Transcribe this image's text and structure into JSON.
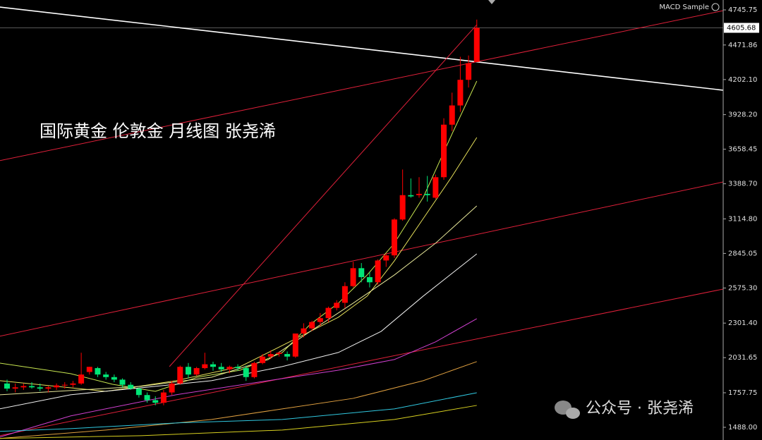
{
  "chart_data": {
    "type": "candlestick",
    "title": "国际黄金 伦敦金 月线图 张尧浠",
    "indicator": "MACD Sample",
    "watermark": "公众号 · 张尧浠",
    "up_color": "#ff0000",
    "down_color": "#00e676",
    "ylim": [
      1389,
      4823
    ],
    "yticks": [
      4745.75,
      {
        "value": 4471.86,
        "label": "4471.86"
      },
      {
        "value": 4202.1,
        "label": "4202.10"
      },
      {
        "value": 3928.2,
        "label": "3928.20"
      },
      3658.45,
      {
        "value": 3388.7,
        "label": "3388.70"
      },
      {
        "value": 3114.8,
        "label": "3114.80"
      },
      2845.05,
      {
        "value": 2575.3,
        "label": "2575.30"
      },
      {
        "value": 2301.4,
        "label": "2301.40"
      },
      2031.65,
      1757.75,
      {
        "value": 1488,
        "label": "1488.00"
      }
    ],
    "current_price": 4605.68,
    "ohlc": [
      [
        1830,
        1860,
        1770,
        1790
      ],
      [
        1790,
        1830,
        1760,
        1800
      ],
      [
        1800,
        1830,
        1780,
        1810
      ],
      [
        1810,
        1840,
        1790,
        1800
      ],
      [
        1800,
        1830,
        1770,
        1790
      ],
      [
        1790,
        1810,
        1760,
        1800
      ],
      [
        1800,
        1830,
        1780,
        1815
      ],
      [
        1815,
        1840,
        1790,
        1820
      ],
      [
        1820,
        1850,
        1800,
        1830
      ],
      [
        1830,
        2070,
        1820,
        1900
      ],
      [
        1920,
        1960,
        1900,
        1960
      ],
      [
        1950,
        1960,
        1880,
        1900
      ],
      [
        1900,
        1920,
        1860,
        1880
      ],
      [
        1880,
        1900,
        1840,
        1860
      ],
      [
        1860,
        1870,
        1800,
        1820
      ],
      [
        1820,
        1840,
        1780,
        1790
      ],
      [
        1790,
        1800,
        1720,
        1740
      ],
      [
        1740,
        1760,
        1680,
        1700
      ],
      [
        1700,
        1730,
        1660,
        1680
      ],
      [
        1680,
        1780,
        1660,
        1760
      ],
      [
        1760,
        1850,
        1740,
        1830
      ],
      [
        1830,
        1970,
        1820,
        1960
      ],
      [
        1960,
        1990,
        1870,
        1900
      ],
      [
        1900,
        1960,
        1890,
        1950
      ],
      [
        1950,
        2070,
        1940,
        1980
      ],
      [
        1980,
        2000,
        1930,
        1960
      ],
      [
        1960,
        1990,
        1920,
        1940
      ],
      [
        1940,
        1970,
        1910,
        1960
      ],
      [
        1960,
        1980,
        1930,
        1950
      ],
      [
        1950,
        1970,
        1850,
        1880
      ],
      [
        1880,
        2000,
        1870,
        1990
      ],
      [
        1990,
        2060,
        1980,
        2040
      ],
      [
        2040,
        2090,
        2020,
        2060
      ],
      [
        2060,
        2080,
        2040,
        2070
      ],
      [
        2060,
        2080,
        2010,
        2040
      ],
      [
        2040,
        2220,
        2030,
        2220
      ],
      [
        2220,
        2300,
        2190,
        2260
      ],
      [
        2260,
        2320,
        2240,
        2310
      ],
      [
        2310,
        2380,
        2280,
        2340
      ],
      [
        2340,
        2430,
        2310,
        2420
      ],
      [
        2420,
        2480,
        2400,
        2460
      ],
      [
        2460,
        2620,
        2420,
        2590
      ],
      [
        2590,
        2780,
        2580,
        2730
      ],
      [
        2730,
        2770,
        2620,
        2660
      ],
      [
        2660,
        2700,
        2580,
        2620
      ],
      [
        2620,
        2800,
        2600,
        2790
      ],
      [
        2790,
        2840,
        2740,
        2830
      ],
      [
        2830,
        3120,
        2810,
        3110
      ],
      [
        3110,
        3500,
        3100,
        3300
      ],
      [
        3300,
        3430,
        3280,
        3290
      ],
      [
        3300,
        3440,
        3280,
        3310
      ],
      [
        3310,
        3450,
        3250,
        3300
      ],
      [
        3280,
        3460,
        3270,
        3440
      ],
      [
        3440,
        3900,
        3420,
        3850
      ],
      [
        3850,
        4100,
        3800,
        4000
      ],
      [
        4000,
        4380,
        3950,
        4200
      ],
      [
        4200,
        4390,
        4140,
        4330
      ],
      [
        4340,
        4670,
        4340,
        4605.68
      ]
    ],
    "series": [
      {
        "color": "#c8e650",
        "x": [
          -0.9,
          7.7,
          12.8,
          18,
          23.1,
          28.3,
          33.4,
          36.8,
          40.2,
          43.7,
          47,
          50.5,
          54,
          57
        ],
        "values": [
          1989,
          1907,
          1824,
          1769,
          1879,
          1934,
          2072,
          2292,
          2457,
          2677,
          2925,
          3282,
          3778,
          4190
        ]
      },
      {
        "color": "#e6e05a",
        "x": [
          -0.9,
          12,
          20.5,
          28.3,
          33.4,
          40.2,
          43.7,
          47,
          50.5,
          54,
          57
        ],
        "values": [
          1852,
          1769,
          1852,
          1962,
          2127,
          2347,
          2512,
          2787,
          3117,
          3447,
          3750
        ]
      },
      {
        "color": "#e8e89a",
        "x": [
          -0.9,
          16.3,
          24.8,
          31.7,
          36.8,
          42,
          47,
          52,
          57
        ],
        "values": [
          1742,
          1808,
          1879,
          2017,
          2237,
          2457,
          2677,
          2925,
          3216
        ]
      },
      {
        "color": "#f0f0f0",
        "x": [
          -0.9,
          7.7,
          16.3,
          24.8,
          33.4,
          40.2,
          45.4,
          50.5,
          57
        ],
        "values": [
          1632,
          1742,
          1797,
          1852,
          1962,
          2072,
          2237,
          2512,
          2842
        ]
      },
      {
        "color": "#d040d0",
        "x": [
          -0.9,
          7.7,
          20.5,
          31.7,
          40.2,
          47,
          52,
          57
        ],
        "values": [
          1412,
          1577,
          1742,
          1852,
          1934,
          2017,
          2155,
          2336
        ]
      },
      {
        "color": "#e0a040",
        "x": [
          -0.9,
          12,
          24.8,
          33.4,
          42,
          50.5,
          57
        ],
        "values": [
          1401,
          1467,
          1549,
          1632,
          1714,
          1852,
          2001
        ]
      },
      {
        "color": "#30c8e0",
        "x": [
          -0.9,
          7.7,
          20.5,
          33.4,
          47,
          57
        ],
        "values": [
          1456,
          1478,
          1522,
          1549,
          1632,
          1758
        ]
      },
      {
        "color": "#d8d020",
        "x": [
          -0.9,
          16.3,
          33.4,
          47,
          57
        ],
        "values": [
          1401,
          1423,
          1467,
          1549,
          1659
        ]
      }
    ],
    "trend_lines": [
      {
        "color": "#ffffff",
        "x": [
          -0.9,
          86.9
        ],
        "values": [
          4768,
          4119
        ]
      },
      {
        "color": "#e0203a",
        "x": [
          -0.9,
          86.9
        ],
        "values": [
          3569,
          4740
        ]
      },
      {
        "color": "#e0203a",
        "x": [
          -0.9,
          86.9
        ],
        "values": [
          2199,
          3403
        ]
      },
      {
        "color": "#e0203a",
        "x": [
          -0.9,
          86.9
        ],
        "values": [
          1423,
          2567
        ]
      },
      {
        "color": "#e0203a",
        "x": [
          19.7,
          57
        ],
        "values": [
          1962,
          4630
        ]
      }
    ]
  }
}
